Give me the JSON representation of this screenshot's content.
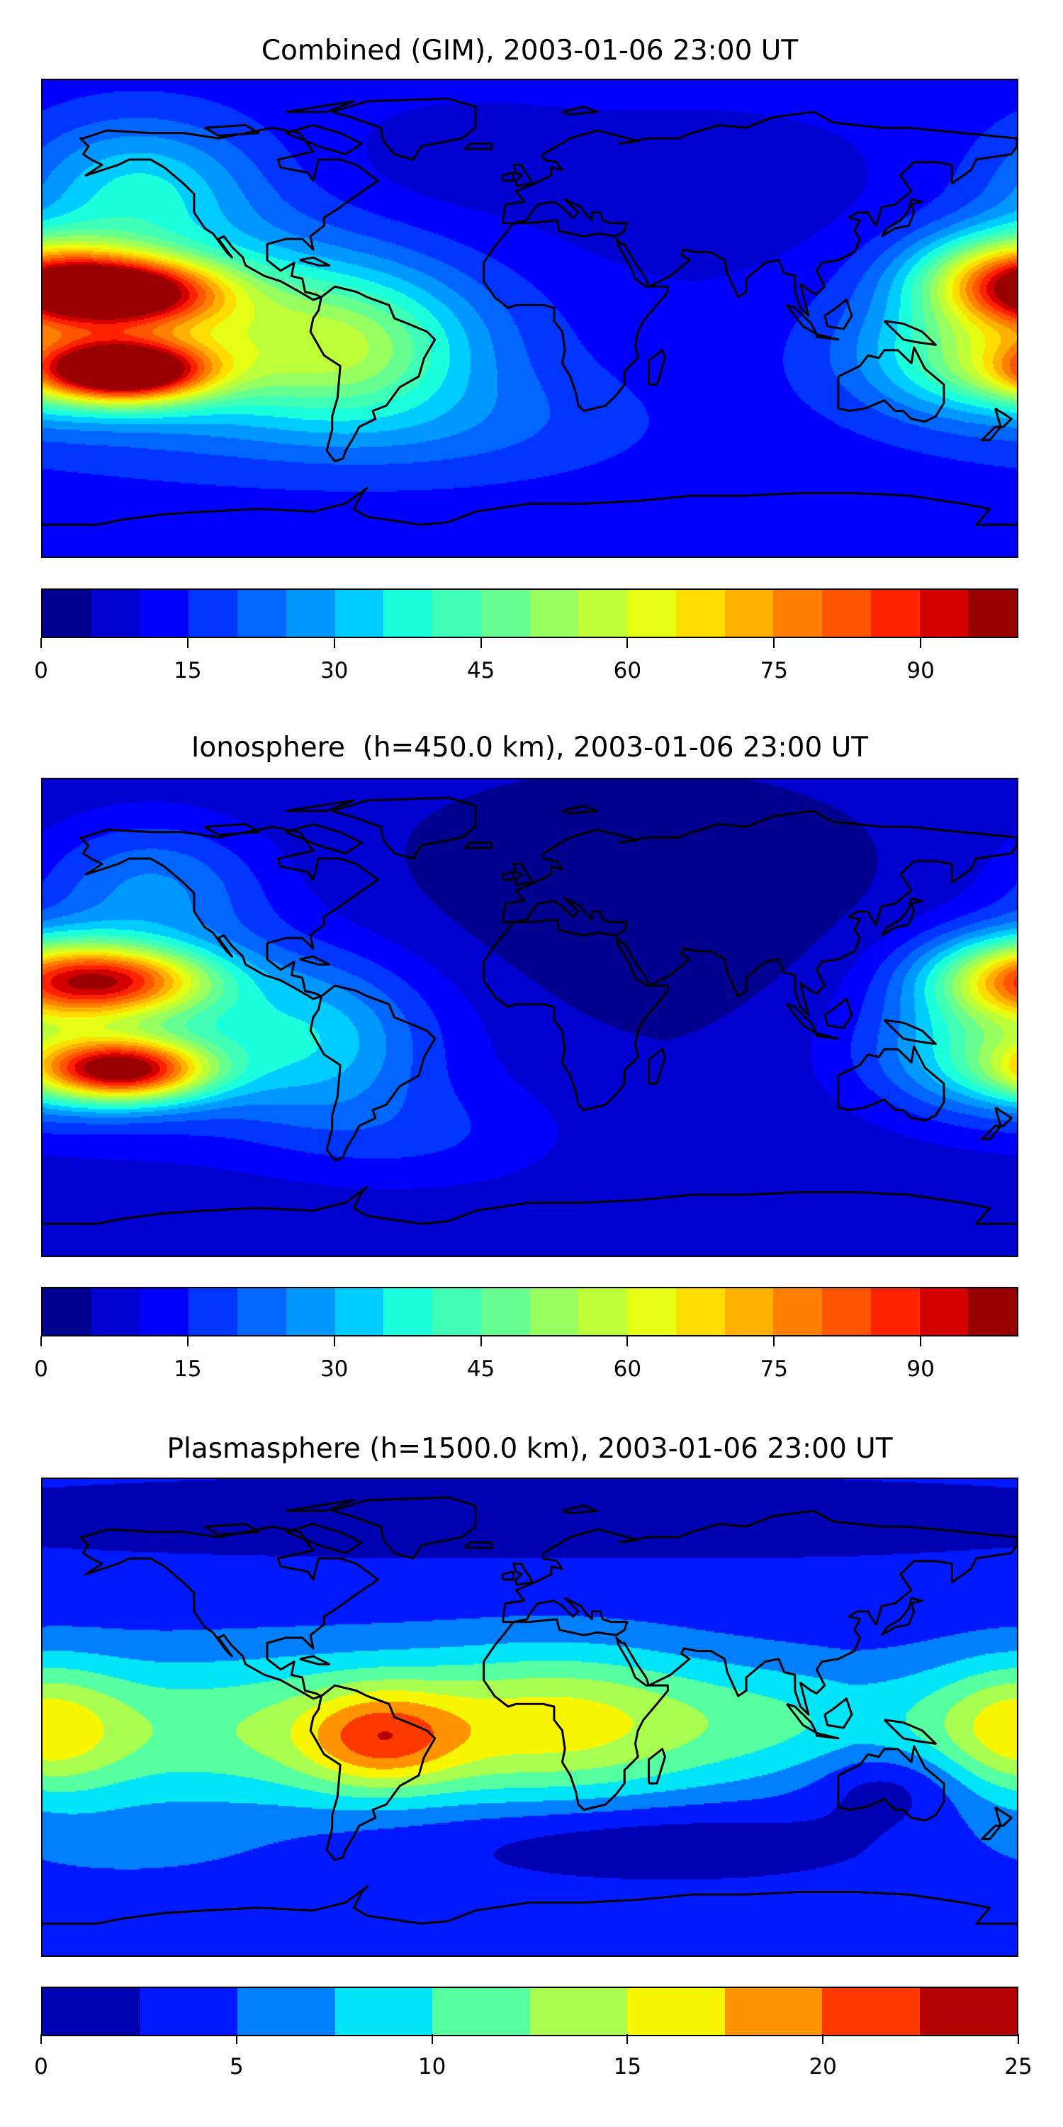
{
  "panels": [
    {
      "title": "Combined (GIM), 2003-01-06 23:00 UT",
      "colorbar": {
        "vmin": 0,
        "vmax": 100,
        "levels": [
          0,
          5,
          10,
          15,
          20,
          25,
          30,
          35,
          40,
          45,
          50,
          55,
          60,
          65,
          70,
          75,
          80,
          85,
          90,
          95,
          100
        ],
        "colors": [
          "#00008f",
          "#0000d0",
          "#0000ff",
          "#0034ff",
          "#0066ff",
          "#0098ff",
          "#00ccff",
          "#1affdc",
          "#40ffb7",
          "#66ff90",
          "#97ff5f",
          "#bdff39",
          "#e4ff13",
          "#ffdd00",
          "#ffb000",
          "#ff7f00",
          "#ff5500",
          "#ff2200",
          "#d40000",
          "#990000"
        ],
        "ticks": [
          0,
          15,
          30,
          45,
          60,
          75,
          90
        ],
        "tick_labels": [
          "0",
          "15",
          "30",
          "45",
          "60",
          "75",
          "90"
        ]
      },
      "field": {
        "base": 12,
        "blobs": [
          {
            "lon": -150,
            "lat": -20,
            "amp": 82,
            "sx": 22,
            "sy": 8
          },
          {
            "lon": -148,
            "lat": 10,
            "amp": 62,
            "sx": 25,
            "sy": 9
          },
          {
            "lon": -120,
            "lat": -5,
            "amp": 35,
            "sx": 60,
            "sy": 25
          },
          {
            "lon": -65,
            "lat": -12,
            "amp": 22,
            "sx": 30,
            "sy": 18
          },
          {
            "lon": 178,
            "lat": 15,
            "amp": 50,
            "sx": 25,
            "sy": 12
          },
          {
            "lon": 165,
            "lat": -15,
            "amp": 25,
            "sx": 30,
            "sy": 15
          },
          {
            "lon": -145,
            "lat": 50,
            "amp": 22,
            "sx": 30,
            "sy": 18
          },
          {
            "lon": -30,
            "lat": -40,
            "amp": 8,
            "sx": 50,
            "sy": 15
          },
          {
            "lon": 60,
            "lat": 45,
            "amp": -5,
            "sx": 60,
            "sy": 25
          },
          {
            "lon": -30,
            "lat": 60,
            "amp": -4,
            "sx": 30,
            "sy": 15
          }
        ]
      }
    },
    {
      "title": "Ionosphere  (h=450.0 km), 2003-01-06 23:00 UT",
      "colorbar": {
        "vmin": 0,
        "vmax": 100,
        "levels": [
          0,
          5,
          10,
          15,
          20,
          25,
          30,
          35,
          40,
          45,
          50,
          55,
          60,
          65,
          70,
          75,
          80,
          85,
          90,
          95,
          100
        ],
        "colors": [
          "#00008f",
          "#0000d0",
          "#0000ff",
          "#0034ff",
          "#0066ff",
          "#0098ff",
          "#00ccff",
          "#1affdc",
          "#40ffb7",
          "#66ff90",
          "#97ff5f",
          "#bdff39",
          "#e4ff13",
          "#ffdd00",
          "#ffb000",
          "#ff7f00",
          "#ff5500",
          "#ff2200",
          "#d40000",
          "#990000"
        ],
        "ticks": [
          0,
          15,
          30,
          45,
          60,
          75,
          90
        ],
        "tick_labels": [
          "0",
          "15",
          "30",
          "45",
          "60",
          "75",
          "90"
        ]
      },
      "field": {
        "base": 6,
        "blobs": [
          {
            "lon": -150,
            "lat": -20,
            "amp": 70,
            "sx": 22,
            "sy": 8
          },
          {
            "lon": -150,
            "lat": 14,
            "amp": 48,
            "sx": 25,
            "sy": 9
          },
          {
            "lon": -130,
            "lat": -5,
            "amp": 25,
            "sx": 60,
            "sy": 25
          },
          {
            "lon": -75,
            "lat": -10,
            "amp": 12,
            "sx": 25,
            "sy": 20
          },
          {
            "lon": 178,
            "lat": 15,
            "amp": 40,
            "sx": 25,
            "sy": 12
          },
          {
            "lon": 170,
            "lat": -15,
            "amp": 22,
            "sx": 30,
            "sy": 15
          },
          {
            "lon": -140,
            "lat": 50,
            "amp": 18,
            "sx": 30,
            "sy": 18
          },
          {
            "lon": -40,
            "lat": -45,
            "amp": 8,
            "sx": 40,
            "sy": 15
          },
          {
            "lon": 40,
            "lat": 40,
            "amp": -5,
            "sx": 60,
            "sy": 30
          }
        ]
      }
    },
    {
      "title": "Plasmasphere (h=1500.0 km), 2003-01-06 23:00 UT",
      "colorbar": {
        "vmin": 0,
        "vmax": 25,
        "levels": [
          0,
          2.5,
          5,
          7.5,
          10,
          12.5,
          15,
          17.5,
          20,
          22.5,
          25
        ],
        "colors": [
          "#0000b3",
          "#0019ff",
          "#0080ff",
          "#00e5f8",
          "#56ffa0",
          "#a8ff4f",
          "#f8f500",
          "#ff9400",
          "#ff3800",
          "#b30000"
        ],
        "ticks": [
          0,
          5,
          10,
          15,
          20,
          25
        ],
        "tick_labels": [
          "0",
          "5",
          "10",
          "15",
          "20",
          "25"
        ]
      },
      "field": {
        "base": 3,
        "blobs": [
          {
            "lon": -60,
            "lat": -5,
            "amp": 10,
            "sx": 120,
            "sy": 22
          },
          {
            "lon": -55,
            "lat": -8,
            "amp": 9,
            "sx": 20,
            "sy": 13
          },
          {
            "lon": -180,
            "lat": -5,
            "amp": 8,
            "sx": 22,
            "sy": 18
          },
          {
            "lon": 15,
            "lat": 0,
            "amp": 5,
            "sx": 35,
            "sy": 20
          },
          {
            "lon": 100,
            "lat": 0,
            "amp": 3,
            "sx": 40,
            "sy": 15
          },
          {
            "lon": 135,
            "lat": -25,
            "amp": -4,
            "sx": 20,
            "sy": 10
          },
          {
            "lon": 40,
            "lat": -45,
            "amp": -3,
            "sx": 60,
            "sy": 10
          },
          {
            "lon": -150,
            "lat": -50,
            "amp": 2,
            "sx": 40,
            "sy": 10
          },
          {
            "lon": 0,
            "lat": 75,
            "amp": -2,
            "sx": 150,
            "sy": 10
          }
        ]
      }
    }
  ]
}
